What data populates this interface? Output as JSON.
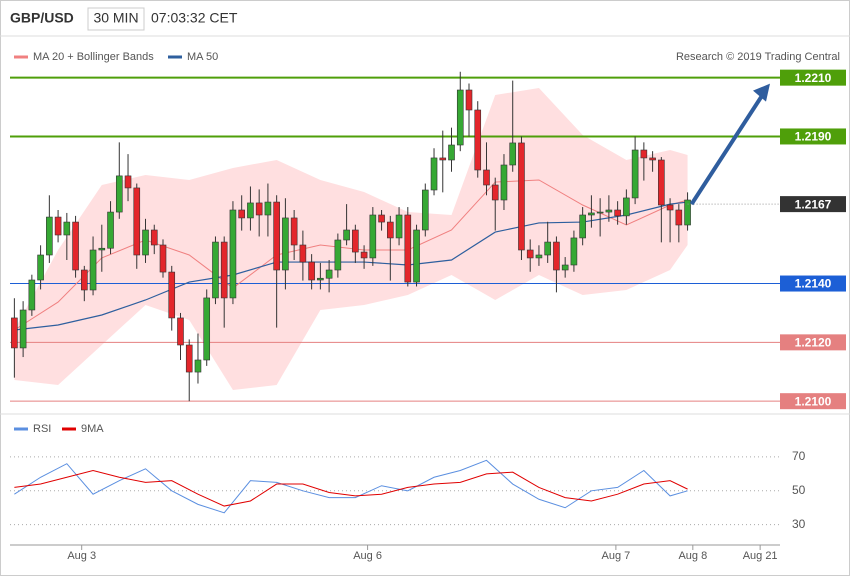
{
  "header": {
    "symbol": "GBP/USD",
    "interval": "30 MIN",
    "time": "07:03:32 CET"
  },
  "chart_data": [
    {
      "type": "candlestick",
      "annotation": "Research © 2019 Trading Central",
      "up_color": "#36a834",
      "down_color": "#e3262b",
      "xlim": [
        -0.5,
        87
      ],
      "ylim": [
        1.2097,
        1.2216
      ],
      "open": [
        1.21283,
        1.21181,
        1.2131,
        1.21412,
        1.21497,
        1.21626,
        1.21565,
        1.21609,
        1.21446,
        1.21378,
        1.21514,
        1.2152,
        1.21643,
        1.21766,
        1.21725,
        1.21497,
        1.21582,
        1.21531,
        1.21439,
        1.21283,
        1.21191,
        1.21099,
        1.2114,
        1.21351,
        1.21541,
        1.21351,
        1.2165,
        1.21623,
        1.21674,
        1.21633,
        1.21677,
        1.21446,
        1.21623,
        1.21531,
        1.21473,
        1.21412,
        1.21418,
        1.21446,
        1.21548,
        1.21582,
        1.21507,
        1.21487,
        1.21633,
        1.21609,
        1.21555,
        1.21633,
        1.21405,
        1.21582,
        1.21718,
        1.21827,
        1.2182,
        1.21871,
        1.22058,
        1.2199,
        1.21786,
        1.21735,
        1.21684,
        1.21803,
        1.21878,
        1.21514,
        1.21487,
        1.21497,
        1.21541,
        1.21446,
        1.21463,
        1.21555,
        1.21633,
        1.2164,
        1.21643,
        1.2165,
        1.2163,
        1.21691,
        1.21854,
        1.21827,
        1.2182,
        1.21667,
        1.2165,
        1.21599
      ],
      "high": [
        1.2135,
        1.2134,
        1.2143,
        1.2153,
        1.217,
        1.2165,
        1.2164,
        1.2163,
        1.2146,
        1.2156,
        1.216,
        1.2168,
        1.2188,
        1.2184,
        1.2174,
        1.2162,
        1.216,
        1.2155,
        1.2146,
        1.213,
        1.2121,
        1.2123,
        1.2138,
        1.2156,
        1.2156,
        1.2168,
        1.217,
        1.2173,
        1.2172,
        1.2174,
        1.217,
        1.2169,
        1.2165,
        1.2158,
        1.215,
        1.2147,
        1.2148,
        1.2157,
        1.2167,
        1.216,
        1.2153,
        1.2166,
        1.2165,
        1.2163,
        1.2166,
        1.2166,
        1.216,
        1.2174,
        1.2186,
        1.2192,
        1.2193,
        1.2212,
        1.2208,
        1.2202,
        1.2188,
        1.2176,
        1.2184,
        1.2209,
        1.219,
        1.2155,
        1.2153,
        1.2161,
        1.2156,
        1.2149,
        1.2158,
        1.2166,
        1.217,
        1.2169,
        1.217,
        1.2168,
        1.2172,
        1.219,
        1.2188,
        1.2185,
        1.2183,
        1.2169,
        1.2167,
        1.2171
      ],
      "low": [
        1.2108,
        1.2115,
        1.2129,
        1.2138,
        1.2147,
        1.2154,
        1.2148,
        1.2142,
        1.2134,
        1.2136,
        1.2144,
        1.215,
        1.2162,
        1.2168,
        1.2145,
        1.2147,
        1.215,
        1.2142,
        1.2124,
        1.2114,
        1.21,
        1.2106,
        1.2112,
        1.2133,
        1.2125,
        1.2133,
        1.2158,
        1.2158,
        1.2156,
        1.2156,
        1.2125,
        1.2138,
        1.2148,
        1.2141,
        1.2138,
        1.2138,
        1.2137,
        1.2142,
        1.2153,
        1.2147,
        1.2145,
        1.2146,
        1.2158,
        1.2141,
        1.2153,
        1.2139,
        1.2139,
        1.2156,
        1.217,
        1.2171,
        1.2178,
        1.2185,
        1.219,
        1.2176,
        1.217,
        1.2158,
        1.2165,
        1.2178,
        1.2148,
        1.2144,
        1.2146,
        1.2147,
        1.2137,
        1.2142,
        1.2144,
        1.2153,
        1.2159,
        1.2156,
        1.2161,
        1.216,
        1.216,
        1.2167,
        1.2175,
        1.2178,
        1.2154,
        1.2154,
        1.2154,
        1.2158
      ],
      "close": [
        1.21181,
        1.2131,
        1.21412,
        1.21497,
        1.21626,
        1.21565,
        1.21609,
        1.21446,
        1.21378,
        1.21514,
        1.2152,
        1.21643,
        1.21766,
        1.21725,
        1.21497,
        1.21582,
        1.21531,
        1.21439,
        1.21283,
        1.21191,
        1.21099,
        1.2114,
        1.21351,
        1.21541,
        1.21351,
        1.2165,
        1.21623,
        1.21674,
        1.21633,
        1.21677,
        1.21446,
        1.21623,
        1.21531,
        1.21473,
        1.21412,
        1.21418,
        1.21446,
        1.21548,
        1.21582,
        1.21507,
        1.21487,
        1.21633,
        1.21609,
        1.21555,
        1.21633,
        1.21405,
        1.21582,
        1.21718,
        1.21827,
        1.2182,
        1.21871,
        1.22058,
        1.2199,
        1.21786,
        1.21735,
        1.21684,
        1.21803,
        1.21878,
        1.21514,
        1.21487,
        1.21497,
        1.21541,
        1.21446,
        1.21463,
        1.21555,
        1.21633,
        1.2164,
        1.21643,
        1.2165,
        1.2163,
        1.21691,
        1.21854,
        1.21827,
        1.2182,
        1.21667,
        1.2165,
        1.21599,
        1.21684
      ],
      "overlay_x": [
        0,
        5,
        10,
        15,
        20,
        25,
        30,
        35,
        40,
        45,
        50,
        55,
        60,
        65,
        70,
        75,
        77
      ],
      "series": [
        {
          "name": "MA 20 + Bollinger Bands",
          "color": "#f08080",
          "band_color": "#ffdfe0",
          "values": [
            1.21242,
            1.21337,
            1.21487,
            1.21548,
            1.21497,
            1.21385,
            1.21497,
            1.21531,
            1.21514,
            1.21514,
            1.21582,
            1.21745,
            1.21752,
            1.21667,
            1.21599,
            1.21667,
            1.21684
          ],
          "upper": [
            1.21242,
            1.21514,
            1.21735,
            1.21769,
            1.21752,
            1.21793,
            1.2182,
            1.21752,
            1.21711,
            1.21643,
            1.21633,
            1.22041,
            1.22065,
            1.21905,
            1.2182,
            1.21854,
            1.21837
          ],
          "lower": [
            1.21072,
            1.21055,
            1.21191,
            1.21327,
            1.21276,
            1.21038,
            1.21055,
            1.2131,
            1.21327,
            1.21361,
            1.21429,
            1.21344,
            1.21429,
            1.21361,
            1.21378,
            1.21446,
            1.21531
          ]
        },
        {
          "name": "MA 50",
          "color": "#2e5f9e",
          "values": [
            1.21242,
            1.21259,
            1.21293,
            1.21344,
            1.21405,
            1.21429,
            1.21473,
            1.21473,
            1.21473,
            1.21463,
            1.2148,
            1.21575,
            1.21606,
            1.21609,
            1.21633,
            1.2167,
            1.21677
          ]
        }
      ],
      "levels": [
        {
          "value": 1.221,
          "label": "1.2210",
          "color": "#4f9f0a"
        },
        {
          "value": 1.219,
          "label": "1.2190",
          "color": "#4f9f0a"
        },
        {
          "value": 1.214,
          "label": "1.2140",
          "color": "#1c5fd6"
        },
        {
          "value": 1.212,
          "label": "1.2120",
          "color": "#e58080"
        },
        {
          "value": 1.21,
          "label": "1.2100",
          "color": "#e58080"
        }
      ],
      "current": {
        "value": 1.2167,
        "color": "#333333"
      }
    },
    {
      "type": "line",
      "xlim": [
        -0.5,
        87
      ],
      "ylim": [
        18,
        80
      ],
      "yticks": [
        30,
        50,
        70
      ],
      "grid": true,
      "x": [
        0,
        3,
        6,
        9,
        12,
        15,
        18,
        21,
        24,
        27,
        30,
        33,
        36,
        39,
        42,
        45,
        48,
        51,
        54,
        57,
        60,
        63,
        66,
        69,
        72,
        75,
        77
      ],
      "xticks": [
        {
          "value": 7.7,
          "label": "Aug 3"
        },
        {
          "value": 40.4,
          "label": "Aug 6"
        },
        {
          "value": 68.8,
          "label": "Aug 7"
        },
        {
          "value": 77.6,
          "label": "Aug 8"
        },
        {
          "value": 85.3,
          "label": "Aug 21"
        }
      ],
      "series": [
        {
          "name": "RSI",
          "color": "#5b8fe0",
          "values": [
            48,
            58,
            66,
            48,
            56,
            63,
            50,
            42,
            37,
            56,
            55,
            50,
            46,
            46,
            53,
            50,
            58,
            62,
            68,
            54,
            45,
            40,
            50,
            52,
            62,
            47,
            50
          ]
        },
        {
          "name": "9MA",
          "color": "#e00000",
          "values": [
            52,
            54,
            58,
            62,
            58,
            55,
            56,
            48,
            41,
            44,
            54,
            54,
            49,
            47,
            48,
            52,
            54,
            55,
            60,
            61,
            52,
            46,
            44,
            48,
            54,
            56,
            51
          ]
        }
      ]
    }
  ]
}
